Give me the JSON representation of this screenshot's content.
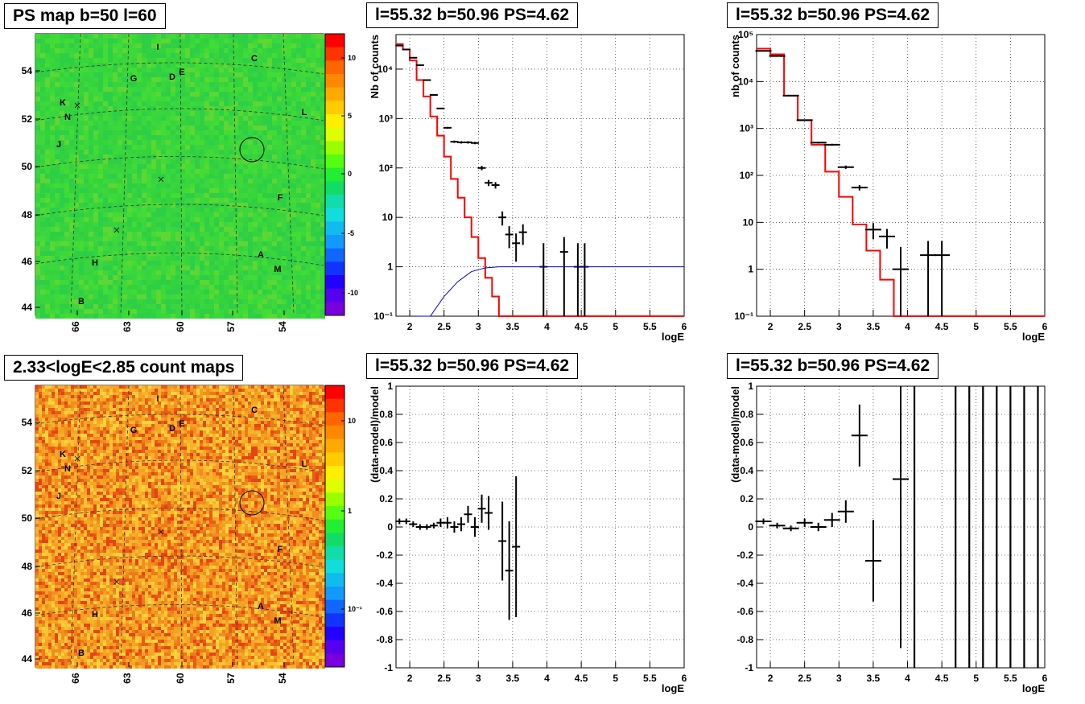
{
  "titles": {
    "ps_map": "PS map b=50 l=60",
    "spec_tl": "l=55.32 b=50.96 PS=4.62",
    "spec_tr": "l=55.32 b=50.96 PS=4.62",
    "count_map": "2.33<logE<2.85 count maps",
    "res_bl": "l=55.32 b=50.96 PS=4.62",
    "res_br": "l=55.32 b=50.96 PS=4.62"
  },
  "maps": {
    "y_ticks": [
      "54",
      "52",
      "50",
      "48",
      "46",
      "44"
    ],
    "x_ticks": [
      "66",
      "63",
      "60",
      "57",
      "54"
    ],
    "letters": [
      "I",
      "C",
      "E",
      "G",
      "D",
      "K",
      "L",
      "N",
      "J",
      "F",
      "H",
      "A",
      "M",
      "B"
    ],
    "ps_colorbar_ticks": [
      "10",
      "5",
      "0",
      "-5",
      "-10"
    ],
    "count_colorbar_ticks": [
      "10",
      "1",
      "10⁻¹"
    ]
  },
  "axes": {
    "spec_ylabel_a": "Nb of counts",
    "spec_ylabel_b": "nb of counts",
    "res_ylabel": "(data-model)/model",
    "xlabel": "logE",
    "x_ticks": [
      "2",
      "2.5",
      "3",
      "3.5",
      "4",
      "4.5",
      "5",
      "5.5",
      "6"
    ],
    "log_y_ticks": [
      "10⁻¹",
      "1",
      "10",
      "10²",
      "10³",
      "10⁴",
      "10⁵"
    ],
    "res_y_ticks": [
      "1",
      "0.8",
      "0.6",
      "0.4",
      "0.2",
      "0",
      "-0.2",
      "-0.4",
      "-0.6",
      "-0.8",
      "-1"
    ]
  },
  "chart_data": [
    {
      "type": "line",
      "xlabel": "logE",
      "ylabel": "Nb of counts",
      "xlim": [
        1.8,
        6
      ],
      "ylim": [
        0.1,
        50000
      ],
      "yscale": "log",
      "grid": true,
      "series": [
        {
          "color": "#ff0000",
          "type": "step",
          "x": [
            1.8,
            1.9,
            2.0,
            2.1,
            2.2,
            2.3,
            2.4,
            2.5,
            2.6,
            2.7,
            2.8,
            2.9,
            3.0,
            3.1,
            3.2,
            3.3,
            3.4,
            3.5,
            3.6,
            3.7,
            3.8,
            3.9,
            4.0,
            6.0
          ],
          "values": [
            32000,
            25000,
            15000,
            6000,
            2800,
            1100,
            450,
            170,
            60,
            25,
            10,
            4,
            1.5,
            0.6,
            0.25,
            0.1,
            0.1,
            0.1,
            0.1,
            0.1,
            0.1,
            0.1,
            0.1,
            0.1
          ]
        },
        {
          "color": "#000000",
          "type": "errorbar",
          "x": [
            1.85,
            1.95,
            2.05,
            2.15,
            2.25,
            2.35,
            2.45,
            2.55,
            2.65,
            2.75,
            2.85,
            2.95,
            3.05,
            3.15,
            3.25,
            3.35,
            3.45,
            3.55,
            3.65,
            3.95,
            4.25,
            4.45,
            4.55
          ],
          "values": [
            30000,
            25000,
            17000,
            12000,
            6000,
            3000,
            1600,
            650,
            340,
            330,
            330,
            320,
            100,
            50,
            45,
            10,
            4.5,
            3,
            5,
            1,
            2,
            1,
            1
          ]
        },
        {
          "color": "#0000cc",
          "type": "curve",
          "x": [
            2.1,
            2.3,
            2.5,
            2.7,
            2.9,
            3.1,
            3.3,
            3.5,
            4.0,
            6.0
          ],
          "values": [
            0.1,
            0.1,
            0.25,
            0.5,
            0.8,
            0.95,
            1.0,
            1.0,
            1.0,
            1.0
          ]
        }
      ]
    },
    {
      "type": "line",
      "xlabel": "logE",
      "ylabel": "nb of counts",
      "xlim": [
        1.8,
        6
      ],
      "ylim": [
        0.1,
        100000
      ],
      "yscale": "log",
      "grid": true,
      "series": [
        {
          "color": "#ff0000",
          "type": "step",
          "x": [
            1.8,
            2.0,
            2.2,
            2.4,
            2.6,
            2.8,
            3.0,
            3.2,
            3.4,
            3.6,
            3.8,
            4.0,
            4.2,
            6.0
          ],
          "values": [
            50000,
            38000,
            5000,
            1500,
            450,
            120,
            35,
            9,
            2.5,
            0.6,
            0.1,
            0.1,
            0.1,
            0.1
          ]
        },
        {
          "color": "#000000",
          "type": "errorbar",
          "x": [
            1.9,
            2.1,
            2.3,
            2.5,
            2.7,
            2.9,
            3.1,
            3.3,
            3.5,
            3.7,
            3.9,
            4.3,
            4.5
          ],
          "values": [
            45000,
            35000,
            5000,
            1500,
            500,
            450,
            150,
            55,
            7,
            5,
            1,
            2,
            2
          ]
        }
      ]
    },
    {
      "type": "scatter",
      "xlabel": "logE",
      "ylabel": "(data-model)/model",
      "xlim": [
        1.8,
        6
      ],
      "ylim": [
        -1,
        1
      ],
      "grid": true,
      "series": [
        {
          "color": "#000000",
          "type": "errorbar",
          "x": [
            1.85,
            1.95,
            2.05,
            2.15,
            2.25,
            2.35,
            2.45,
            2.55,
            2.65,
            2.75,
            2.85,
            2.95,
            3.05,
            3.15,
            3.35,
            3.45,
            3.55
          ],
          "values": [
            0.04,
            0.04,
            0.02,
            0.0,
            0.0,
            0.01,
            0.03,
            0.03,
            0.0,
            0.02,
            0.09,
            0.0,
            0.13,
            0.1,
            -0.1,
            -0.31,
            -0.14
          ]
        }
      ]
    },
    {
      "type": "scatter",
      "xlabel": "logE",
      "ylabel": "(data-model)/model",
      "xlim": [
        1.8,
        6
      ],
      "ylim": [
        -1,
        1
      ],
      "grid": true,
      "series": [
        {
          "color": "#000000",
          "type": "errorbar",
          "x": [
            1.9,
            2.1,
            2.3,
            2.5,
            2.7,
            2.9,
            3.1,
            3.3,
            3.5,
            3.9
          ],
          "values": [
            0.04,
            0.01,
            -0.01,
            0.03,
            0.0,
            0.05,
            0.11,
            0.65,
            -0.24,
            0.34
          ]
        }
      ]
    }
  ]
}
